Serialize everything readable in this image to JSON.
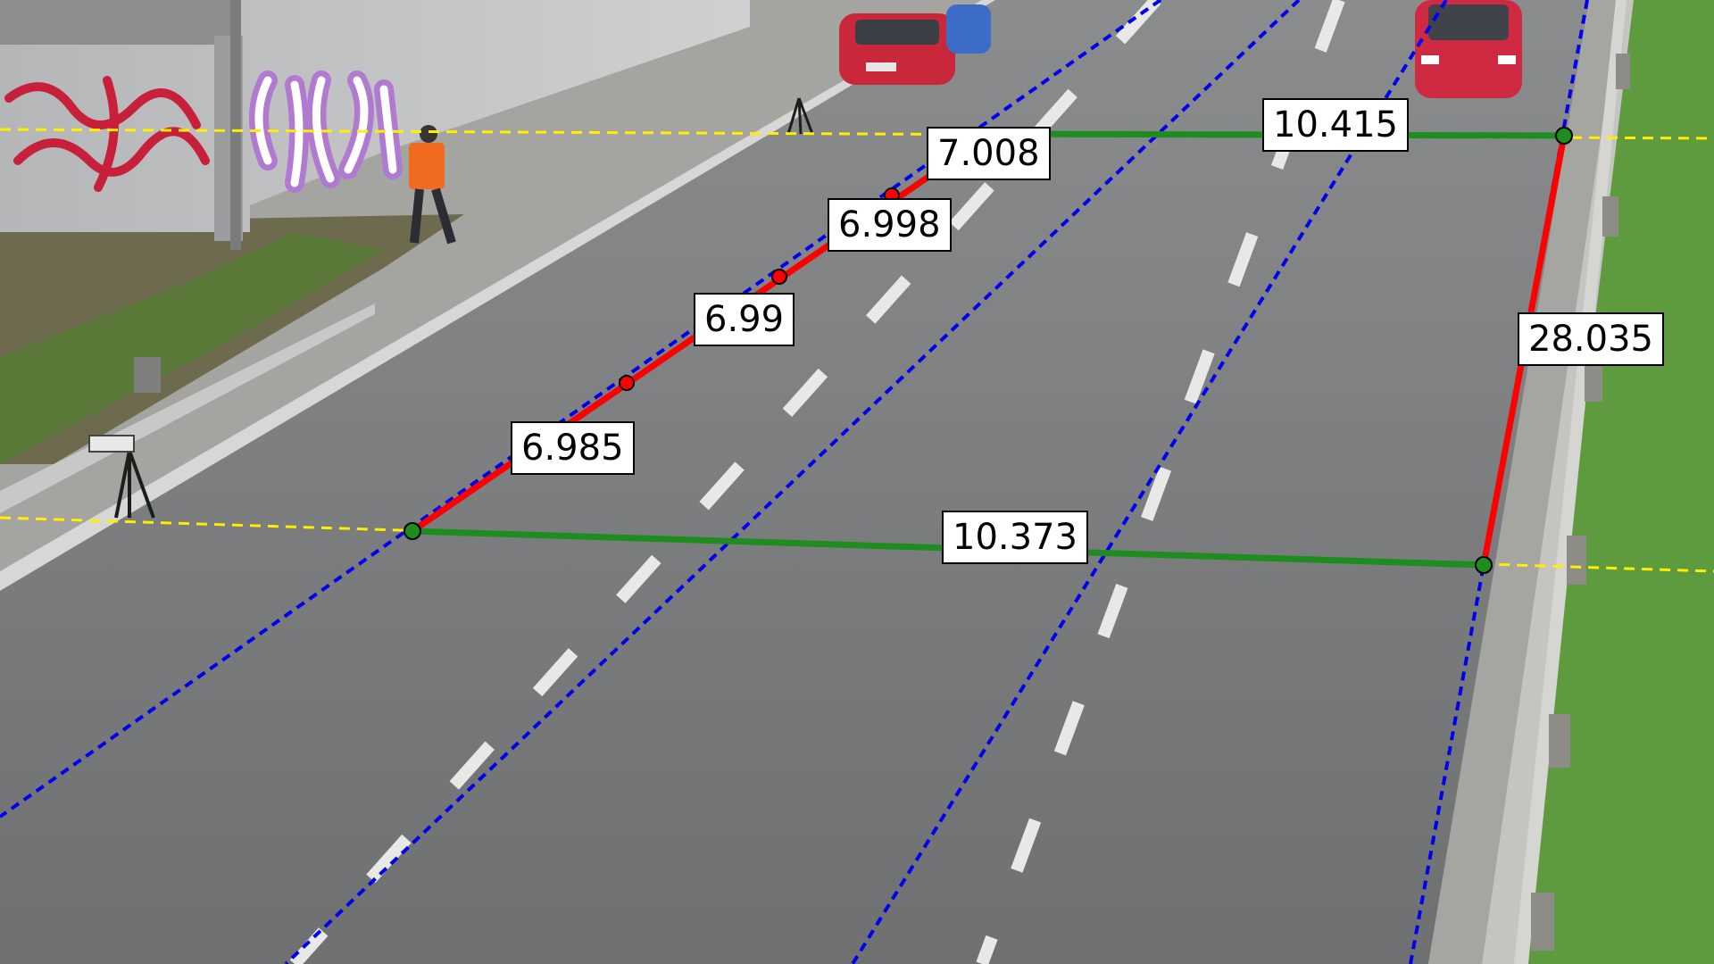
{
  "measurements": {
    "left_segment_1": "6.985",
    "left_segment_2": "6.99",
    "left_segment_3": "6.998",
    "left_segment_4": "7.008",
    "top_width": "10.415",
    "bottom_width": "10.373",
    "right_length": "28.035"
  },
  "colors": {
    "length_line": "#ff0000",
    "width_line": "#1e8c1e",
    "lane_marker_line": "#0000ee",
    "horizon_line": "#ffee00",
    "road": "#7a7c7d",
    "grass": "#5e9a3e",
    "wall": "#c9cacb"
  }
}
